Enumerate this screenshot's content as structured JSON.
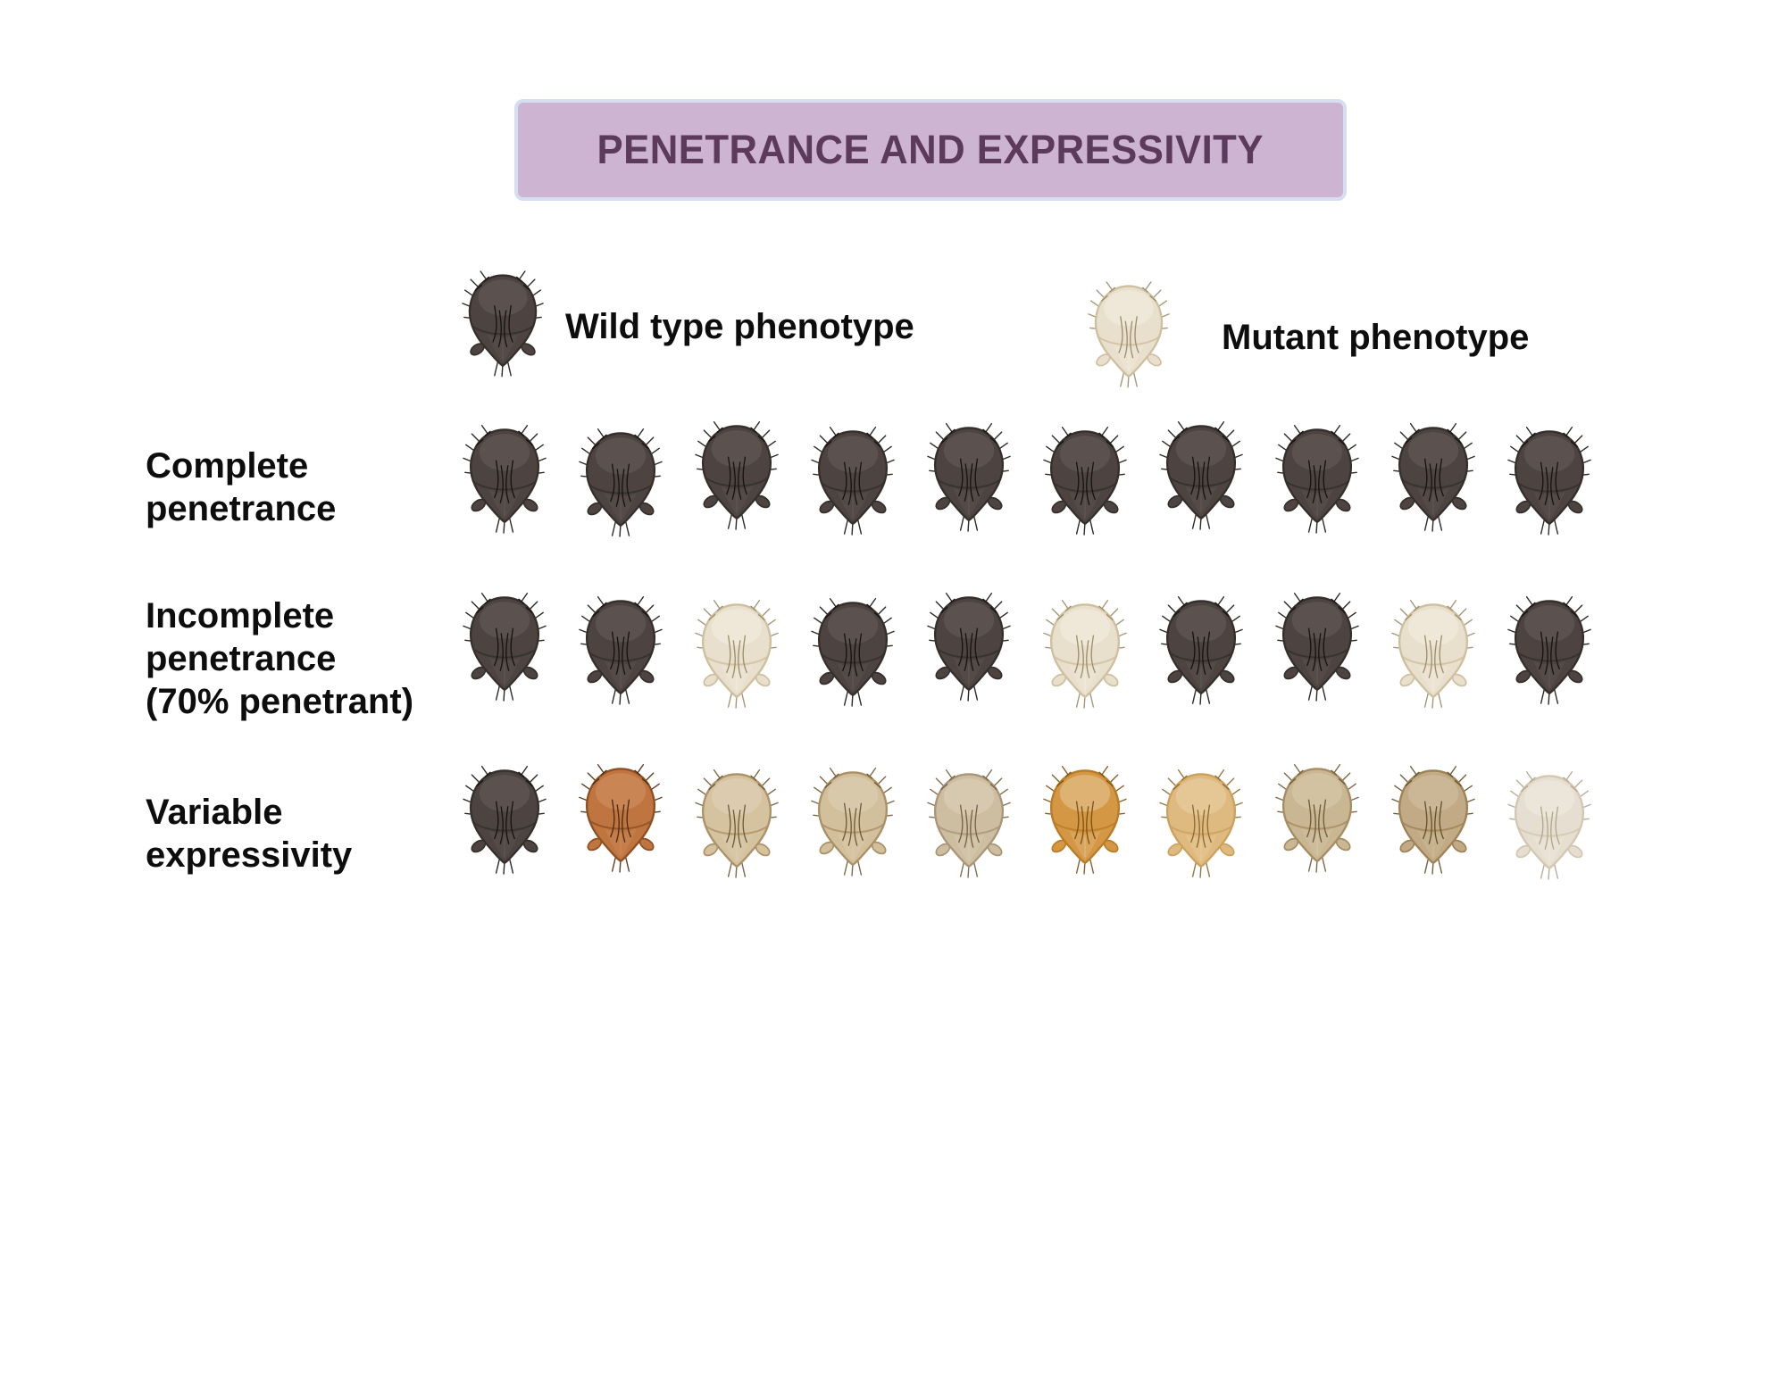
{
  "title": {
    "text": "PENETRANCE AND EXPRESSIVITY",
    "bg_color": "#cdb4d2",
    "border_color": "#d6dff2",
    "text_color": "#5c3a5e"
  },
  "legend": {
    "items": [
      {
        "icon": "wild-type-fly-icon",
        "palette": "wildtype",
        "label": "Wild type phenotype"
      },
      {
        "icon": "mutant-fly-icon",
        "palette": "mutant",
        "label": "Mutant phenotype"
      }
    ]
  },
  "rows": [
    {
      "id": "complete-penetrance",
      "label": "Complete\npenetrance",
      "flies": [
        "wildtype",
        "wildtype",
        "wildtype",
        "wildtype",
        "wildtype",
        "wildtype",
        "wildtype",
        "wildtype",
        "wildtype",
        "wildtype"
      ]
    },
    {
      "id": "incomplete-penetrance",
      "label": "Incomplete\npenetrance\n(70% penetrant)",
      "flies": [
        "wildtype",
        "wildtype",
        "mutant",
        "wildtype",
        "wildtype",
        "mutant",
        "wildtype",
        "wildtype",
        "mutant",
        "wildtype"
      ]
    },
    {
      "id": "variable-expressivity",
      "label": "Variable\nexpressivity",
      "flies": [
        "wildtype",
        "rust",
        "tan_a",
        "tan_b",
        "tan_pale",
        "gold",
        "gold_light",
        "tan_c",
        "khaki",
        "cream_pale"
      ]
    }
  ],
  "palettes": {
    "wildtype": {
      "body": "#4d4441",
      "shade": "#5b524f",
      "outline": "#352f2c",
      "bristle": "#17120f"
    },
    "mutant": {
      "body": "#e8dfcc",
      "shade": "#efe8d8",
      "outline": "#cebf9f",
      "bristle": "#9c8d6b"
    },
    "rust": {
      "body": "#bf7540",
      "shade": "#ca8555",
      "outline": "#8e5022",
      "bristle": "#4a2c10"
    },
    "tan_a": {
      "body": "#d5c29e",
      "shade": "#dccbae",
      "outline": "#ac9268",
      "bristle": "#6f5a38"
    },
    "tan_b": {
      "body": "#d2bf9b",
      "shade": "#d9c9ab",
      "outline": "#aa9066",
      "bristle": "#6f5a38"
    },
    "tan_pale": {
      "body": "#cdbea2",
      "shade": "#d6c9b0",
      "outline": "#a99678",
      "bristle": "#75613f"
    },
    "gold": {
      "body": "#d49743",
      "shade": "#ddb273",
      "outline": "#b97c26",
      "bristle": "#7a5214"
    },
    "gold_light": {
      "body": "#dfba80",
      "shade": "#e5c795",
      "outline": "#cba15c",
      "bristle": "#8a6a33"
    },
    "tan_c": {
      "body": "#c9b692",
      "shade": "#d2c2a2",
      "outline": "#a68c62",
      "bristle": "#6f5a38"
    },
    "khaki": {
      "body": "#c1aa85",
      "shade": "#cbb795",
      "outline": "#9d8355",
      "bristle": "#64502e"
    },
    "cream_pale": {
      "body": "#e6ded0",
      "shade": "#ece6da",
      "outline": "#d3c7b2",
      "bristle": "#b3a68c"
    }
  }
}
